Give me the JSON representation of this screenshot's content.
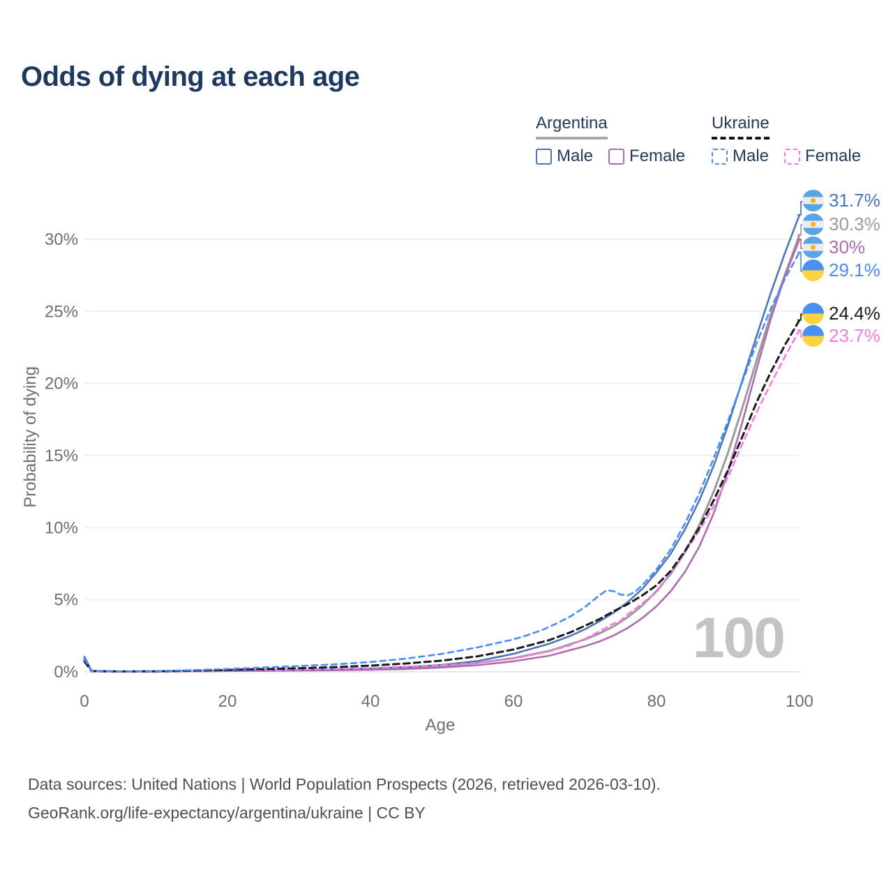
{
  "title": "Odds of dying at each age",
  "age_counter": "100",
  "legend": {
    "groups": [
      {
        "name": "Argentina",
        "line_style": "solid",
        "underline_color": "#a9a9a9",
        "items": [
          {
            "label": "Male",
            "color": "#4a76b8"
          },
          {
            "label": "Female",
            "color": "#ae6cae"
          }
        ]
      },
      {
        "name": "Ukraine",
        "line_style": "dashed",
        "underline_color": "#141414",
        "items": [
          {
            "label": "Male",
            "color": "#4a8cf7"
          },
          {
            "label": "Female",
            "color": "#f87ae5"
          }
        ]
      }
    ]
  },
  "footer": {
    "line1": "Data sources: United Nations | World Population Prospects (2026, retrieved 2026-03-10).",
    "line2": "GeoRank.org/life-expectancy/argentina/ukraine | CC BY"
  },
  "chart_data": {
    "type": "line",
    "title": "Odds of dying at each age",
    "xlabel": "Age",
    "ylabel": "Probability of dying",
    "xlim": [
      0,
      100
    ],
    "ylim": [
      0,
      33
    ],
    "grid": "horizontal",
    "legend_position": "top-right",
    "x_ticks": [
      {
        "value": 0,
        "label": "0"
      },
      {
        "value": 20,
        "label": "20"
      },
      {
        "value": 40,
        "label": "40"
      },
      {
        "value": 60,
        "label": "60"
      },
      {
        "value": 80,
        "label": "80"
      },
      {
        "value": 100,
        "label": "100"
      }
    ],
    "y_ticks": [
      {
        "value": 0,
        "label": "0%"
      },
      {
        "value": 5,
        "label": "5%"
      },
      {
        "value": 10,
        "label": "10%"
      },
      {
        "value": 15,
        "label": "15%"
      },
      {
        "value": 20,
        "label": "20%"
      },
      {
        "value": 25,
        "label": "25%"
      },
      {
        "value": 30,
        "label": "30%"
      }
    ],
    "series": [
      {
        "name": "Argentina Male",
        "country": "Argentina",
        "sex": "Male",
        "color": "#4a76b8",
        "dashed": false,
        "flag": "argentina",
        "end_label": "31.7%",
        "end_value": 31.7,
        "points": [
          [
            0,
            1.05
          ],
          [
            1,
            0.07
          ],
          [
            5,
            0.03
          ],
          [
            10,
            0.03
          ],
          [
            15,
            0.06
          ],
          [
            20,
            0.1
          ],
          [
            25,
            0.13
          ],
          [
            30,
            0.15
          ],
          [
            35,
            0.18
          ],
          [
            40,
            0.24
          ],
          [
            45,
            0.33
          ],
          [
            50,
            0.48
          ],
          [
            55,
            0.75
          ],
          [
            60,
            1.25
          ],
          [
            65,
            1.95
          ],
          [
            68,
            2.5
          ],
          [
            70,
            2.95
          ],
          [
            72,
            3.5
          ],
          [
            74,
            4.1
          ],
          [
            76,
            4.85
          ],
          [
            78,
            5.75
          ],
          [
            80,
            6.9
          ],
          [
            82,
            8.2
          ],
          [
            84,
            9.9
          ],
          [
            86,
            11.9
          ],
          [
            88,
            14.3
          ],
          [
            90,
            17.1
          ],
          [
            92,
            20.2
          ],
          [
            94,
            23.3
          ],
          [
            96,
            26.3
          ],
          [
            98,
            29.1
          ],
          [
            100,
            31.7
          ]
        ]
      },
      {
        "name": "Argentina",
        "country": "Argentina",
        "sex": "Both",
        "color": "#9b9b9b",
        "dashed": false,
        "flag": "argentina",
        "end_label": "30.3%",
        "end_value": 30.3,
        "points": [
          [
            0,
            0.95
          ],
          [
            1,
            0.06
          ],
          [
            5,
            0.02
          ],
          [
            10,
            0.02
          ],
          [
            15,
            0.05
          ],
          [
            20,
            0.08
          ],
          [
            25,
            0.1
          ],
          [
            30,
            0.12
          ],
          [
            35,
            0.15
          ],
          [
            40,
            0.19
          ],
          [
            45,
            0.27
          ],
          [
            50,
            0.4
          ],
          [
            55,
            0.62
          ],
          [
            60,
            0.95
          ],
          [
            65,
            1.45
          ],
          [
            70,
            2.25
          ],
          [
            72,
            2.65
          ],
          [
            74,
            3.15
          ],
          [
            76,
            3.8
          ],
          [
            78,
            4.6
          ],
          [
            80,
            5.6
          ],
          [
            82,
            6.8
          ],
          [
            84,
            8.3
          ],
          [
            86,
            10.2
          ],
          [
            88,
            12.5
          ],
          [
            90,
            15.2
          ],
          [
            92,
            18.3
          ],
          [
            94,
            21.6
          ],
          [
            96,
            24.8
          ],
          [
            98,
            27.6
          ],
          [
            100,
            30.3
          ]
        ]
      },
      {
        "name": "Argentina Female",
        "country": "Argentina",
        "sex": "Female",
        "color": "#ae6cae",
        "dashed": false,
        "flag": "argentina",
        "end_label": "30%",
        "end_value": 30,
        "points": [
          [
            0,
            0.9
          ],
          [
            1,
            0.05
          ],
          [
            5,
            0.02
          ],
          [
            10,
            0.02
          ],
          [
            15,
            0.04
          ],
          [
            20,
            0.06
          ],
          [
            25,
            0.07
          ],
          [
            30,
            0.09
          ],
          [
            35,
            0.11
          ],
          [
            40,
            0.14
          ],
          [
            45,
            0.2
          ],
          [
            50,
            0.3
          ],
          [
            55,
            0.46
          ],
          [
            60,
            0.73
          ],
          [
            65,
            1.12
          ],
          [
            70,
            1.78
          ],
          [
            72,
            2.1
          ],
          [
            74,
            2.52
          ],
          [
            76,
            3.05
          ],
          [
            78,
            3.72
          ],
          [
            80,
            4.55
          ],
          [
            82,
            5.6
          ],
          [
            84,
            6.95
          ],
          [
            86,
            8.7
          ],
          [
            88,
            11.0
          ],
          [
            90,
            13.9
          ],
          [
            92,
            17.3
          ],
          [
            94,
            21.0
          ],
          [
            96,
            24.5
          ],
          [
            98,
            27.5
          ],
          [
            100,
            30.0
          ]
        ]
      },
      {
        "name": "Ukraine Male",
        "country": "Ukraine",
        "sex": "Male",
        "color": "#4a8cf7",
        "dashed": true,
        "flag": "ukraine",
        "end_label": "29.1%",
        "end_value": 29.1,
        "points": [
          [
            0,
            0.9
          ],
          [
            1,
            0.06
          ],
          [
            5,
            0.03
          ],
          [
            10,
            0.05
          ],
          [
            15,
            0.12
          ],
          [
            20,
            0.2
          ],
          [
            25,
            0.3
          ],
          [
            30,
            0.4
          ],
          [
            35,
            0.52
          ],
          [
            40,
            0.68
          ],
          [
            45,
            0.92
          ],
          [
            50,
            1.25
          ],
          [
            55,
            1.7
          ],
          [
            60,
            2.25
          ],
          [
            62,
            2.55
          ],
          [
            64,
            2.9
          ],
          [
            66,
            3.35
          ],
          [
            68,
            3.85
          ],
          [
            70,
            4.5
          ],
          [
            71,
            4.9
          ],
          [
            72,
            5.3
          ],
          [
            73,
            5.65
          ],
          [
            74,
            5.6
          ],
          [
            75,
            5.35
          ],
          [
            76,
            5.3
          ],
          [
            77,
            5.55
          ],
          [
            78,
            6.0
          ],
          [
            80,
            7.1
          ],
          [
            82,
            8.5
          ],
          [
            84,
            10.3
          ],
          [
            86,
            12.4
          ],
          [
            88,
            14.8
          ],
          [
            90,
            17.4
          ],
          [
            92,
            20.1
          ],
          [
            94,
            22.8
          ],
          [
            96,
            25.2
          ],
          [
            98,
            27.3
          ],
          [
            100,
            29.1
          ]
        ]
      },
      {
        "name": "Ukraine",
        "country": "Ukraine",
        "sex": "Both",
        "color": "#1a1a1a",
        "dashed": true,
        "flag": "ukraine",
        "end_label": "24.4%",
        "end_value": 24.4,
        "points": [
          [
            0,
            0.75
          ],
          [
            1,
            0.05
          ],
          [
            5,
            0.03
          ],
          [
            10,
            0.04
          ],
          [
            15,
            0.08
          ],
          [
            20,
            0.13
          ],
          [
            25,
            0.19
          ],
          [
            30,
            0.25
          ],
          [
            35,
            0.33
          ],
          [
            40,
            0.43
          ],
          [
            45,
            0.58
          ],
          [
            50,
            0.78
          ],
          [
            55,
            1.08
          ],
          [
            60,
            1.55
          ],
          [
            65,
            2.2
          ],
          [
            68,
            2.75
          ],
          [
            70,
            3.2
          ],
          [
            72,
            3.65
          ],
          [
            74,
            4.2
          ],
          [
            76,
            4.7
          ],
          [
            78,
            5.3
          ],
          [
            80,
            6.0
          ],
          [
            82,
            7.0
          ],
          [
            84,
            8.4
          ],
          [
            86,
            10.0
          ],
          [
            88,
            11.9
          ],
          [
            90,
            14.0
          ],
          [
            92,
            16.3
          ],
          [
            94,
            18.7
          ],
          [
            96,
            20.8
          ],
          [
            98,
            22.7
          ],
          [
            100,
            24.4
          ]
        ]
      },
      {
        "name": "Ukraine Female",
        "country": "Ukraine",
        "sex": "Female",
        "color": "#f87ae5",
        "dashed": true,
        "flag": "ukraine",
        "end_label": "23.7%",
        "end_value": 23.7,
        "points": [
          [
            0,
            0.65
          ],
          [
            1,
            0.04
          ],
          [
            5,
            0.02
          ],
          [
            10,
            0.03
          ],
          [
            15,
            0.05
          ],
          [
            20,
            0.08
          ],
          [
            25,
            0.11
          ],
          [
            30,
            0.15
          ],
          [
            35,
            0.2
          ],
          [
            40,
            0.26
          ],
          [
            45,
            0.36
          ],
          [
            50,
            0.45
          ],
          [
            55,
            0.62
          ],
          [
            60,
            0.92
          ],
          [
            65,
            1.42
          ],
          [
            68,
            1.85
          ],
          [
            70,
            2.3
          ],
          [
            72,
            2.8
          ],
          [
            74,
            3.35
          ],
          [
            75,
            3.55
          ],
          [
            76,
            4.0
          ],
          [
            77,
            4.35
          ],
          [
            78,
            4.75
          ],
          [
            80,
            5.5
          ],
          [
            82,
            6.9
          ],
          [
            84,
            8.3
          ],
          [
            86,
            9.8
          ],
          [
            88,
            11.5
          ],
          [
            90,
            13.5
          ],
          [
            92,
            15.8
          ],
          [
            94,
            18.0
          ],
          [
            96,
            20.0
          ],
          [
            98,
            21.9
          ],
          [
            100,
            23.7
          ]
        ]
      }
    ]
  }
}
